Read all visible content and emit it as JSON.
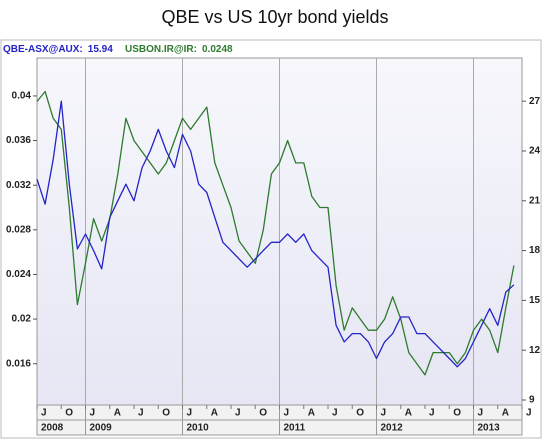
{
  "chart_data": {
    "type": "line",
    "title": "QBE vs US 10yr bond yields",
    "x": [
      "2008-07",
      "2008-08",
      "2008-09",
      "2008-10",
      "2008-11",
      "2008-12",
      "2009-01",
      "2009-02",
      "2009-03",
      "2009-04",
      "2009-05",
      "2009-06",
      "2009-07",
      "2009-08",
      "2009-09",
      "2009-10",
      "2009-11",
      "2009-12",
      "2010-01",
      "2010-02",
      "2010-03",
      "2010-04",
      "2010-05",
      "2010-06",
      "2010-07",
      "2010-08",
      "2010-09",
      "2010-10",
      "2010-11",
      "2010-12",
      "2011-01",
      "2011-02",
      "2011-03",
      "2011-04",
      "2011-05",
      "2011-06",
      "2011-07",
      "2011-08",
      "2011-09",
      "2011-10",
      "2011-11",
      "2011-12",
      "2012-01",
      "2012-02",
      "2012-03",
      "2012-04",
      "2012-05",
      "2012-06",
      "2012-07",
      "2012-08",
      "2012-09",
      "2012-10",
      "2012-11",
      "2012-12",
      "2013-01",
      "2013-02",
      "2013-03",
      "2013-04",
      "2013-05",
      "2013-06"
    ],
    "series": [
      {
        "name": "QBE-ASX@AUX:",
        "last_value": 15.94,
        "color": "#2323c8",
        "axis": "y2",
        "values": [
          22.3,
          20.8,
          23.5,
          27,
          22,
          18.1,
          19,
          18,
          16.9,
          20,
          21,
          22,
          21,
          23,
          24,
          25.3,
          24,
          23,
          25,
          24,
          22,
          21.5,
          20,
          18.5,
          18,
          17.5,
          17,
          17.5,
          18,
          18.5,
          18.5,
          19,
          18.5,
          19,
          18,
          17.5,
          17,
          13.5,
          12.5,
          13,
          13,
          12.5,
          11.5,
          12.5,
          13,
          14,
          14,
          13,
          13,
          12.5,
          12,
          11.5,
          11,
          11.5,
          12.5,
          13.5,
          14.5,
          13.5,
          15.5,
          15.94
        ]
      },
      {
        "name": "USBON.IR@IR:",
        "last_value": 0.0248,
        "color": "#2e7a2e",
        "values": [
          0.0395,
          0.0404,
          0.038,
          0.037,
          0.03,
          0.0213,
          0.025,
          0.029,
          0.027,
          0.029,
          0.033,
          0.038,
          0.036,
          0.035,
          0.034,
          0.033,
          0.034,
          0.036,
          0.038,
          0.037,
          0.038,
          0.039,
          0.034,
          0.032,
          0.03,
          0.027,
          0.026,
          0.025,
          0.028,
          0.033,
          0.034,
          0.036,
          0.034,
          0.034,
          0.031,
          0.03,
          0.03,
          0.023,
          0.019,
          0.021,
          0.02,
          0.019,
          0.019,
          0.02,
          0.022,
          0.02,
          0.017,
          0.016,
          0.015,
          0.017,
          0.017,
          0.017,
          0.016,
          0.017,
          0.019,
          0.02,
          0.019,
          0.017,
          0.021,
          0.0248
        ]
      }
    ],
    "xlim": [
      "2008-07",
      "2013-07"
    ],
    "xticks": [
      {
        "value": "2008-07",
        "label": "J"
      },
      {
        "value": "2008-10",
        "label": "O"
      },
      {
        "value": "2009-01",
        "label": "J"
      },
      {
        "value": "2009-04",
        "label": "A"
      },
      {
        "value": "2009-07",
        "label": "J"
      },
      {
        "value": "2009-10",
        "label": "O"
      },
      {
        "value": "2010-01",
        "label": "J"
      },
      {
        "value": "2010-04",
        "label": "A"
      },
      {
        "value": "2010-07",
        "label": "J"
      },
      {
        "value": "2010-10",
        "label": "O"
      },
      {
        "value": "2011-01",
        "label": "J"
      },
      {
        "value": "2011-04",
        "label": "A"
      },
      {
        "value": "2011-07",
        "label": "J"
      },
      {
        "value": "2011-10",
        "label": "O"
      },
      {
        "value": "2012-01",
        "label": "J"
      },
      {
        "value": "2012-04",
        "label": "A"
      },
      {
        "value": "2012-07",
        "label": "J"
      },
      {
        "value": "2012-10",
        "label": "O"
      },
      {
        "value": "2013-01",
        "label": "J"
      },
      {
        "value": "2013-04",
        "label": "A"
      },
      {
        "value": "2013-07",
        "label": "J"
      }
    ],
    "x_year_ticks": [
      {
        "value": "2008-07",
        "label": "2008"
      },
      {
        "value": "2009-01",
        "label": "2009"
      },
      {
        "value": "2010-01",
        "label": "2010"
      },
      {
        "value": "2011-01",
        "label": "2011"
      },
      {
        "value": "2012-01",
        "label": "2012"
      },
      {
        "value": "2013-01",
        "label": "2013"
      }
    ],
    "ylim": [
      0.0123,
      0.0434
    ],
    "yticks": [
      0.016,
      0.02,
      0.024,
      0.028,
      0.032,
      0.036,
      0.04
    ],
    "y2lim": [
      8.7,
      29.6
    ],
    "y2ticks": [
      9,
      12,
      15,
      18,
      21,
      24,
      27
    ],
    "grid": true
  }
}
